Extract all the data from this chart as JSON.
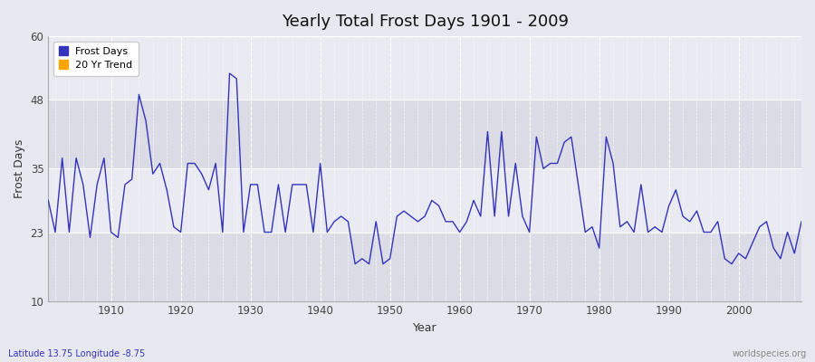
{
  "title": "Yearly Total Frost Days 1901 - 2009",
  "xlabel": "Year",
  "ylabel": "Frost Days",
  "subtitle": "Latitude 13.75 Longitude -8.75",
  "watermark": "worldspecies.org",
  "years": [
    1901,
    1902,
    1903,
    1904,
    1905,
    1906,
    1907,
    1908,
    1909,
    1910,
    1911,
    1912,
    1913,
    1914,
    1915,
    1916,
    1917,
    1918,
    1919,
    1920,
    1921,
    1922,
    1923,
    1924,
    1925,
    1926,
    1927,
    1928,
    1929,
    1930,
    1931,
    1932,
    1933,
    1934,
    1935,
    1936,
    1937,
    1938,
    1939,
    1940,
    1941,
    1942,
    1943,
    1944,
    1945,
    1946,
    1947,
    1948,
    1949,
    1950,
    1951,
    1952,
    1953,
    1954,
    1955,
    1956,
    1957,
    1958,
    1959,
    1960,
    1961,
    1962,
    1963,
    1964,
    1965,
    1966,
    1967,
    1968,
    1969,
    1970,
    1971,
    1972,
    1973,
    1974,
    1975,
    1976,
    1977,
    1978,
    1979,
    1980,
    1981,
    1982,
    1983,
    1984,
    1985,
    1986,
    1987,
    1988,
    1989,
    1990,
    1991,
    1992,
    1993,
    1994,
    1995,
    1996,
    1997,
    1998,
    1999,
    2000,
    2001,
    2002,
    2003,
    2004,
    2005,
    2006,
    2007,
    2008,
    2009
  ],
  "frost_days": [
    29,
    23,
    37,
    23,
    37,
    32,
    22,
    32,
    37,
    23,
    22,
    32,
    33,
    49,
    44,
    34,
    36,
    31,
    24,
    23,
    36,
    36,
    34,
    31,
    36,
    23,
    53,
    52,
    23,
    32,
    32,
    23,
    23,
    32,
    23,
    32,
    32,
    32,
    23,
    36,
    23,
    25,
    26,
    25,
    17,
    18,
    17,
    25,
    17,
    18,
    26,
    27,
    26,
    25,
    26,
    29,
    28,
    25,
    25,
    23,
    25,
    29,
    26,
    42,
    26,
    42,
    26,
    36,
    26,
    23,
    41,
    35,
    36,
    36,
    40,
    41,
    32,
    23,
    24,
    20,
    41,
    36,
    24,
    25,
    23,
    32,
    23,
    24,
    23,
    28,
    31,
    26,
    25,
    27,
    23,
    23,
    25,
    18,
    17,
    19,
    18,
    21,
    24,
    25,
    20,
    18,
    23,
    19,
    25
  ],
  "line_color": "#3333bb",
  "bg_color": "#e8e8f0",
  "plot_bg_light": "#eaeaf2",
  "plot_bg_dark": "#dcdce6",
  "grid_color": "#ffffff",
  "ylim": [
    10,
    60
  ],
  "yticks": [
    10,
    23,
    35,
    48,
    60
  ],
  "xticks": [
    1910,
    1920,
    1930,
    1940,
    1950,
    1960,
    1970,
    1980,
    1990,
    2000
  ],
  "legend_frost_color": "#3333bb",
  "legend_trend_color": "#ffa500",
  "band1_ymin": 35,
  "band1_ymax": 60,
  "band2_ymin": 10,
  "band2_ymax": 23
}
